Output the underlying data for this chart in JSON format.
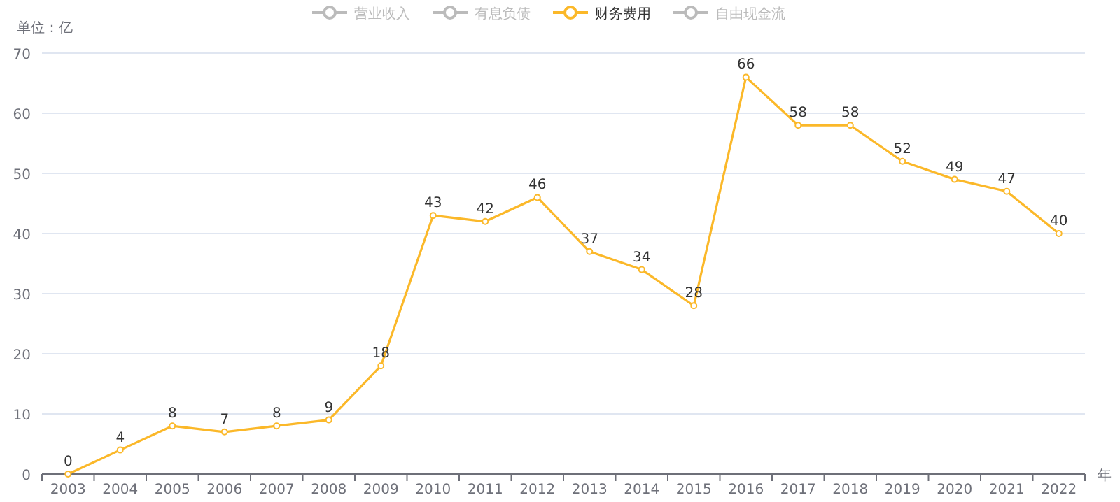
{
  "chart_data": {
    "type": "line",
    "ylabel": "单位：亿",
    "xlabel": "年",
    "categories": [
      "2003",
      "2004",
      "2005",
      "2006",
      "2007",
      "2008",
      "2009",
      "2010",
      "2011",
      "2012",
      "2013",
      "2014",
      "2015",
      "2016",
      "2017",
      "2018",
      "2019",
      "2020",
      "2021",
      "2022"
    ],
    "series": [
      {
        "name": "营业收入",
        "color": "#bbbbbb",
        "values": [
          null,
          null,
          null,
          null,
          null,
          null,
          null,
          null,
          null,
          null,
          null,
          null,
          null,
          null,
          null,
          null,
          null,
          null,
          null,
          null
        ]
      },
      {
        "name": "有息负债",
        "color": "#bbbbbb",
        "values": [
          null,
          null,
          null,
          null,
          null,
          null,
          null,
          null,
          null,
          null,
          null,
          null,
          null,
          null,
          null,
          null,
          null,
          null,
          null,
          null
        ]
      },
      {
        "name": "财务费用",
        "color": "#fbb829",
        "values": [
          0,
          4,
          8,
          7,
          8,
          9,
          18,
          43,
          42,
          46,
          37,
          34,
          28,
          66,
          58,
          58,
          52,
          49,
          47,
          40
        ]
      },
      {
        "name": "自由现金流",
        "color": "#bbbbbb",
        "values": [
          null,
          null,
          null,
          null,
          null,
          null,
          null,
          null,
          null,
          null,
          null,
          null,
          null,
          null,
          null,
          null,
          null,
          null,
          null,
          null
        ]
      }
    ],
    "ylim": [
      0,
      70
    ],
    "yticks": [
      0,
      10,
      20,
      30,
      40,
      50,
      60,
      70
    ],
    "grid": "y",
    "legend": "top",
    "marker": "circle",
    "line_style": "solid",
    "data_labels": true
  }
}
